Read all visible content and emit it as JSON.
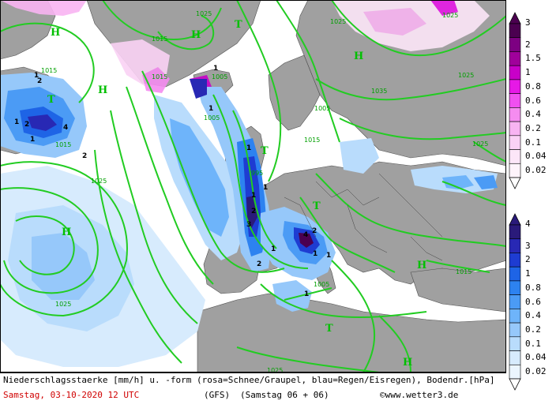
{
  "map": {
    "pressure_centers": [
      {
        "type": "H",
        "label": "H"
      },
      {
        "type": "H",
        "label": "H"
      },
      {
        "type": "H",
        "label": "H"
      },
      {
        "type": "H",
        "label": "H"
      },
      {
        "type": "H",
        "label": "H"
      },
      {
        "type": "H",
        "label": "H"
      },
      {
        "type": "H",
        "label": "H"
      },
      {
        "type": "T",
        "label": "T"
      },
      {
        "type": "T",
        "label": "T"
      },
      {
        "type": "T",
        "label": "T"
      },
      {
        "type": "T",
        "label": "T"
      },
      {
        "type": "T",
        "label": "T"
      }
    ],
    "isobar_labels": [
      "1025",
      "1015",
      "1015",
      "1005",
      "1025",
      "1035",
      "1025",
      "1005",
      "1015",
      "1025",
      "995",
      "1025",
      "1015",
      "1005",
      "1025",
      "1015",
      "1005",
      "1025",
      "1015",
      "1025"
    ],
    "precip_labels": [
      "1",
      "2",
      "1",
      "2",
      "4",
      "1",
      "2",
      "1",
      "1",
      "2",
      "3",
      "1",
      "2",
      "1",
      "2",
      "4",
      "1",
      "1",
      "1",
      "1",
      "1"
    ]
  },
  "legend_snow": {
    "colors": [
      "#4b0050",
      "#7d0082",
      "#a0009b",
      "#c800c8",
      "#e619e6",
      "#f050f0",
      "#f58cf0",
      "#f8b4f2",
      "#fad2f5",
      "#fce6f8",
      "#fef4fb"
    ],
    "labels": [
      "3",
      "2",
      "1.5",
      "1",
      "0.8",
      "0.6",
      "0.4",
      "0.2",
      "0.1",
      "0.04",
      "0.02"
    ]
  },
  "legend_rain": {
    "colors": [
      "#2a1a7a",
      "#2828b4",
      "#1e3cd2",
      "#1e64e6",
      "#2d82f0",
      "#4b9bf5",
      "#6eb4fa",
      "#96c8fa",
      "#b9dcfc",
      "#d7ebfd",
      "#ebf5fe"
    ],
    "labels": [
      "4",
      "3",
      "2",
      "1",
      "0.8",
      "0.6",
      "0.4",
      "0.2",
      "0.1",
      "0.04",
      "0.02"
    ]
  },
  "caption": {
    "line1": "Niederschlagsstaerke [mm/h] u. -form (rosa=Schnee/Graupel, blau=Regen/Eisregen), Bodendr.[hPa]",
    "date": "Samstag, 03-10-2020  12 UTC",
    "model": "(GFS)",
    "run": "(Samstag 06 + 06)",
    "copyright": "©www.wetter3.de"
  },
  "colors": {
    "land": "#a0a0a0",
    "sea": "#ffffff",
    "isobar": "#22cc22",
    "border": "#000000"
  }
}
